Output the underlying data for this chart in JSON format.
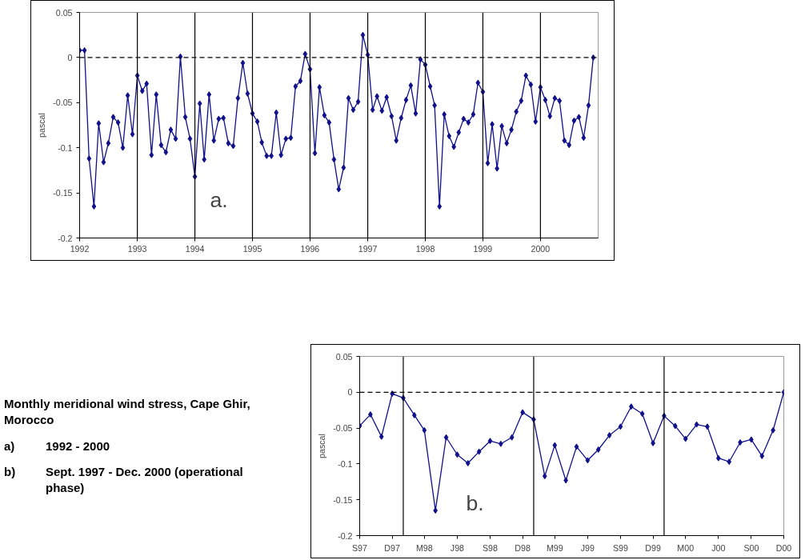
{
  "chart_data": [
    {
      "type": "line",
      "ylabel": "pascal",
      "annotations": [
        "a."
      ],
      "marker": "diamond",
      "line_style": "solid",
      "grid": false,
      "x": [
        "1992-01",
        "1992-02",
        "1992-03",
        "1992-04",
        "1992-05",
        "1992-06",
        "1992-07",
        "1992-08",
        "1992-09",
        "1992-10",
        "1992-11",
        "1992-12",
        "1993-01",
        "1993-02",
        "1993-03",
        "1993-04",
        "1993-05",
        "1993-06",
        "1993-07",
        "1993-08",
        "1993-09",
        "1993-10",
        "1993-11",
        "1993-12",
        "1994-01",
        "1994-02",
        "1994-03",
        "1994-04",
        "1994-05",
        "1994-06",
        "1994-07",
        "1994-08",
        "1994-09",
        "1994-10",
        "1994-11",
        "1994-12",
        "1995-01",
        "1995-02",
        "1995-03",
        "1995-04",
        "1995-05",
        "1995-06",
        "1995-07",
        "1995-08",
        "1995-09",
        "1995-10",
        "1995-11",
        "1995-12",
        "1996-01",
        "1996-02",
        "1996-03",
        "1996-04",
        "1996-05",
        "1996-06",
        "1996-07",
        "1996-08",
        "1996-09",
        "1996-10",
        "1996-11",
        "1996-12",
        "1997-01",
        "1997-02",
        "1997-03",
        "1997-04",
        "1997-05",
        "1997-06",
        "1997-07",
        "1997-08",
        "1997-09",
        "1997-10",
        "1997-11",
        "1997-12",
        "1998-01",
        "1998-02",
        "1998-03",
        "1998-04",
        "1998-05",
        "1998-06",
        "1998-07",
        "1998-08",
        "1998-09",
        "1998-10",
        "1998-11",
        "1998-12",
        "1999-01",
        "1999-02",
        "1999-03",
        "1999-04",
        "1999-05",
        "1999-06",
        "1999-07",
        "1999-08",
        "1999-09",
        "1999-10",
        "1999-11",
        "1999-12",
        "2000-01",
        "2000-02",
        "2000-03",
        "2000-04",
        "2000-05",
        "2000-06",
        "2000-07",
        "2000-08",
        "2000-09",
        "2000-10",
        "2000-11",
        "2000-12"
      ],
      "series": [
        {
          "color": "#10108c",
          "values": [
            0.008,
            0.008,
            -0.112,
            -0.165,
            -0.073,
            -0.116,
            -0.095,
            -0.066,
            -0.072,
            -0.1,
            -0.042,
            -0.085,
            -0.02,
            -0.037,
            -0.029,
            -0.108,
            -0.041,
            -0.097,
            -0.105,
            -0.08,
            -0.09,
            0.001,
            -0.066,
            -0.09,
            -0.132,
            -0.051,
            -0.113,
            -0.041,
            -0.092,
            -0.068,
            -0.067,
            -0.095,
            -0.098,
            -0.045,
            -0.006,
            -0.04,
            -0.062,
            -0.071,
            -0.094,
            -0.109,
            -0.109,
            -0.061,
            -0.108,
            -0.09,
            -0.089,
            -0.032,
            -0.026,
            0.004,
            -0.013,
            -0.106,
            -0.033,
            -0.064,
            -0.072,
            -0.113,
            -0.146,
            -0.122,
            -0.045,
            -0.058,
            -0.049,
            0.025,
            0.003,
            -0.058,
            -0.043,
            -0.059,
            -0.044,
            -0.065,
            -0.092,
            -0.067,
            -0.047,
            -0.031,
            -0.062,
            -0.002,
            -0.008,
            -0.032,
            -0.053,
            -0.165,
            -0.063,
            -0.087,
            -0.099,
            -0.083,
            -0.068,
            -0.072,
            -0.063,
            -0.028,
            -0.038,
            -0.117,
            -0.074,
            -0.123,
            -0.076,
            -0.095,
            -0.08,
            -0.06,
            -0.048,
            -0.02,
            -0.03,
            -0.071,
            -0.033,
            -0.047,
            -0.065,
            -0.045,
            -0.048,
            -0.092,
            -0.097,
            -0.07,
            -0.066,
            -0.089,
            -0.053,
            0.0
          ]
        }
      ],
      "xlim": [
        "1992-01",
        "2001-01"
      ],
      "xticks": [
        "1992",
        "1993",
        "1994",
        "1995",
        "1996",
        "1997",
        "1998",
        "1999",
        "2000"
      ],
      "ylim": [
        -0.2,
        0.05
      ],
      "yticks": [
        0.05,
        0,
        -0.05,
        -0.1,
        -0.15,
        -0.2
      ],
      "ref_lines": [
        {
          "axis": "y",
          "value": 0,
          "color": "#000000",
          "line_style": "dashed"
        },
        {
          "axis": "x",
          "value": "1993",
          "color": "#000000"
        },
        {
          "axis": "x",
          "value": "1994",
          "color": "#000000"
        },
        {
          "axis": "x",
          "value": "1995",
          "color": "#000000"
        },
        {
          "axis": "x",
          "value": "1996",
          "color": "#000000"
        },
        {
          "axis": "x",
          "value": "1997",
          "color": "#000000"
        },
        {
          "axis": "x",
          "value": "1998",
          "color": "#000000"
        },
        {
          "axis": "x",
          "value": "1999",
          "color": "#000000"
        },
        {
          "axis": "x",
          "value": "2000",
          "color": "#000000"
        }
      ]
    },
    {
      "type": "other",
      "title": "Monthly meridional wind stress, Cape Ghir, Morocco",
      "annotations": [
        "a)",
        "1992 - 2000",
        "b)",
        "Sept. 1997 - Dec. 2000 (operational phase)"
      ]
    },
    {
      "type": "line",
      "ylabel": "pascal",
      "annotations": [
        "b."
      ],
      "marker": "diamond",
      "line_style": "solid",
      "grid": false,
      "x": [
        "1997-09",
        "1997-10",
        "1997-11",
        "1997-12",
        "1998-01",
        "1998-02",
        "1998-03",
        "1998-04",
        "1998-05",
        "1998-06",
        "1998-07",
        "1998-08",
        "1998-09",
        "1998-10",
        "1998-11",
        "1998-12",
        "1999-01",
        "1999-02",
        "1999-03",
        "1999-04",
        "1999-05",
        "1999-06",
        "1999-07",
        "1999-08",
        "1999-09",
        "1999-10",
        "1999-11",
        "1999-12",
        "2000-01",
        "2000-02",
        "2000-03",
        "2000-04",
        "2000-05",
        "2000-06",
        "2000-07",
        "2000-08",
        "2000-09",
        "2000-10",
        "2000-11",
        "2000-12"
      ],
      "series": [
        {
          "color": "#10108c",
          "values": [
            -0.047,
            -0.031,
            -0.062,
            -0.002,
            -0.008,
            -0.032,
            -0.053,
            -0.165,
            -0.063,
            -0.087,
            -0.099,
            -0.083,
            -0.068,
            -0.072,
            -0.063,
            -0.028,
            -0.038,
            -0.117,
            -0.074,
            -0.123,
            -0.076,
            -0.095,
            -0.08,
            -0.06,
            -0.048,
            -0.02,
            -0.03,
            -0.071,
            -0.033,
            -0.047,
            -0.065,
            -0.045,
            -0.048,
            -0.092,
            -0.097,
            -0.07,
            -0.066,
            -0.089,
            -0.053,
            0.0
          ]
        }
      ],
      "xlim": [
        "1997-09",
        "2000-12"
      ],
      "xticks": [
        {
          "value": "1997-09",
          "label": "S97"
        },
        {
          "value": "1997-12",
          "label": "D97"
        },
        {
          "value": "1998-03",
          "label": "M98"
        },
        {
          "value": "1998-06",
          "label": "J98"
        },
        {
          "value": "1998-09",
          "label": "S98"
        },
        {
          "value": "1998-12",
          "label": "D98"
        },
        {
          "value": "1999-03",
          "label": "M99"
        },
        {
          "value": "1999-06",
          "label": "J99"
        },
        {
          "value": "1999-09",
          "label": "S99"
        },
        {
          "value": "1999-12",
          "label": "D99"
        },
        {
          "value": "2000-03",
          "label": "M00"
        },
        {
          "value": "2000-06",
          "label": "J00"
        },
        {
          "value": "2000-09",
          "label": "S00"
        },
        {
          "value": "2000-12",
          "label": "D00"
        }
      ],
      "ylim": [
        -0.2,
        0.05
      ],
      "yticks": [
        0.05,
        0,
        -0.05,
        -0.1,
        -0.15,
        -0.2
      ],
      "ref_lines": [
        {
          "axis": "y",
          "value": 0,
          "color": "#000000",
          "line_style": "dashed"
        },
        {
          "axis": "x",
          "value": "1998-01",
          "color": "#000000"
        },
        {
          "axis": "x",
          "value": "1999-01",
          "color": "#000000"
        },
        {
          "axis": "x",
          "value": "2000-01",
          "color": "#000000"
        }
      ]
    }
  ]
}
